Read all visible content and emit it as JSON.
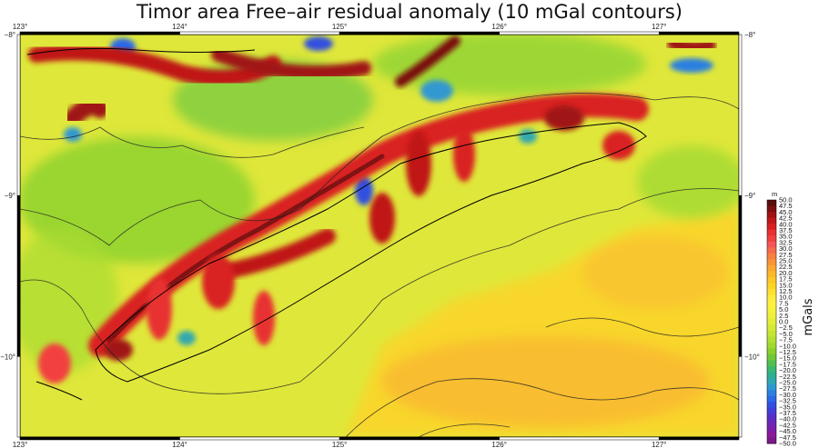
{
  "title": "Timor area Free–air residual anomaly (10 mGal contours)",
  "map": {
    "lon_ticks": [
      "123°",
      "124°",
      "125°",
      "126°",
      "127°"
    ],
    "lat_ticks": [
      "−8°",
      "−9°",
      "−10°"
    ],
    "lon_range": [
      123,
      127.5
    ],
    "lat_range": [
      -10.5,
      -8
    ]
  },
  "colorbar": {
    "top_label": "m",
    "unit": "mGals",
    "labels": [
      "50.0",
      "47.5",
      "45.0",
      "42.5",
      "40.0",
      "37.5",
      "35.0",
      "32.5",
      "30.0",
      "27.5",
      "25.0",
      "22.5",
      "20.0",
      "17.5",
      "15.0",
      "12.5",
      "10.0",
      "7.5",
      "5.0",
      "2.5",
      "0.0",
      "−2.5",
      "−5.0",
      "−7.5",
      "−10.0",
      "−12.5",
      "−15.0",
      "−17.5",
      "−20.0",
      "−22.5",
      "−25.0",
      "−27.5",
      "−30.0",
      "−32.5",
      "−35.0",
      "−37.5",
      "−40.0",
      "−42.5",
      "−45.0",
      "−47.5",
      "−50.0"
    ],
    "colors": [
      "#5a0d0d",
      "#7a1010",
      "#a01313",
      "#c01818",
      "#d92020",
      "#e83030",
      "#f24040",
      "#f55555",
      "#f76a4a",
      "#f88040",
      "#f99538",
      "#faa830",
      "#fbb828",
      "#fcc825",
      "#fdd525",
      "#fee030",
      "#ffeb3b",
      "#fff040",
      "#f6f23c",
      "#eef03a",
      "#e2ee38",
      "#d4ea36",
      "#c4e634",
      "#b2e032",
      "#9fd930",
      "#88d12e",
      "#6fc83a",
      "#52c050",
      "#3ab870",
      "#2eb090",
      "#30a8b0",
      "#3098d0",
      "#2c80e0",
      "#2a68e8",
      "#3050e0",
      "#4040d8",
      "#5530c8",
      "#6a28b8",
      "#7a20a8",
      "#8a1a98",
      "#7a1a88"
    ]
  }
}
